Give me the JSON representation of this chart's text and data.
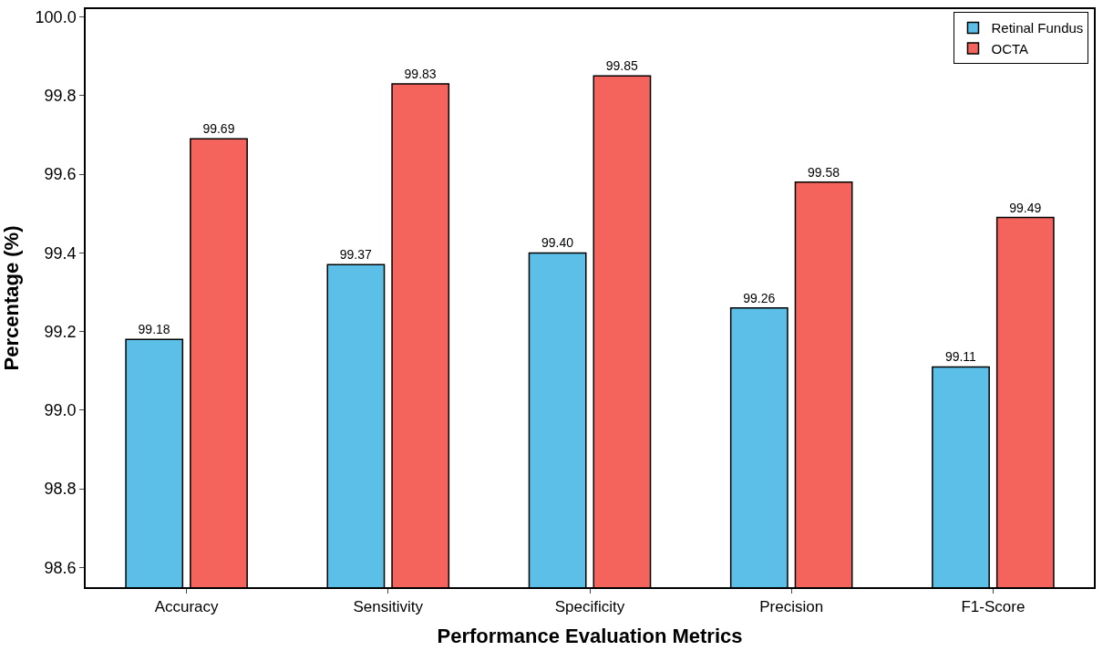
{
  "chart_data": {
    "type": "bar",
    "xlabel": "Performance Evaluation Metrics",
    "ylabel": "Percentage (%)",
    "categories": [
      "Accuracy",
      "Sensitivity",
      "Specificity",
      "Precision",
      "F1-Score"
    ],
    "series": [
      {
        "name": "Retinal Fundus",
        "color": "#5bbfe8",
        "values": [
          99.18,
          99.37,
          99.4,
          99.26,
          99.11
        ],
        "value_labels": [
          "99.18",
          "99.37",
          "99.40",
          "99.26",
          "99.11"
        ]
      },
      {
        "name": "OCTA",
        "color": "#f4645c",
        "values": [
          99.69,
          99.83,
          99.85,
          99.58,
          99.49
        ],
        "value_labels": [
          "99.69",
          "99.83",
          "99.85",
          "99.58",
          "99.49"
        ]
      }
    ],
    "ylim": [
      98.55,
      100.02
    ],
    "yticks": [
      {
        "value": 98.6,
        "label": "98.6"
      },
      {
        "value": 98.8,
        "label": "98.8"
      },
      {
        "value": 99.0,
        "label": "99.0"
      },
      {
        "value": 99.2,
        "label": "99.2"
      },
      {
        "value": 99.4,
        "label": "99.4"
      },
      {
        "value": 99.6,
        "label": "99.6"
      },
      {
        "value": 99.8,
        "label": "99.8"
      },
      {
        "value": 100.0,
        "label": "100.0"
      }
    ],
    "legend": "top right"
  }
}
